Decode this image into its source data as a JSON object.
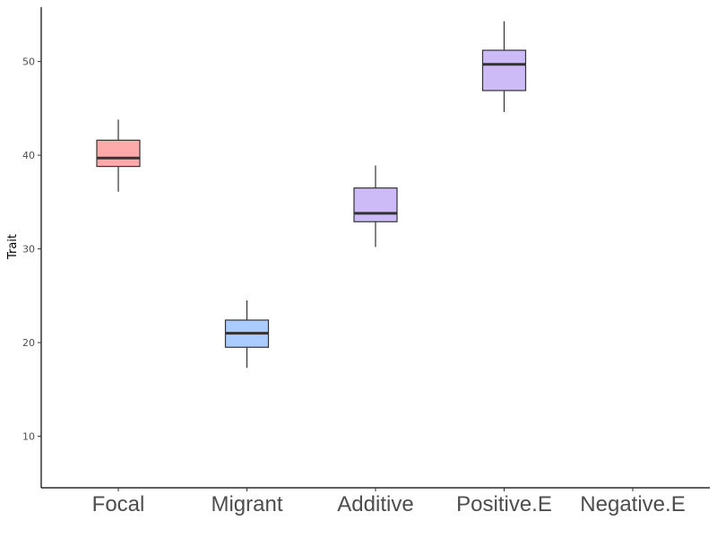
{
  "chart_data": {
    "type": "box",
    "title": "",
    "xlabel": "",
    "ylabel": "Trait",
    "ylim": [
      4.5,
      55.8
    ],
    "yticks": [
      10,
      20,
      30,
      40,
      50
    ],
    "grid": false,
    "legend": "none",
    "categories": [
      "Focal",
      "Migrant",
      "Additive",
      "Positive.E",
      "Negative.E"
    ],
    "boxes": [
      {
        "category": "Focal",
        "whisker_low": 36.1,
        "q1": 38.8,
        "median": 39.7,
        "q3": 41.6,
        "whisker_high": 43.8,
        "color": "#ffaaaa"
      },
      {
        "category": "Migrant",
        "whisker_low": 17.3,
        "q1": 19.5,
        "median": 21.0,
        "q3": 22.4,
        "whisker_high": 24.5,
        "color": "#aaccff"
      },
      {
        "category": "Additive",
        "whisker_low": 30.2,
        "q1": 32.9,
        "median": 33.8,
        "q3": 36.5,
        "whisker_high": 38.9,
        "color": "#ccbbf7"
      },
      {
        "category": "Positive.E",
        "whisker_low": 44.6,
        "q1": 46.9,
        "median": 49.7,
        "q3": 51.2,
        "whisker_high": 54.3,
        "color": "#ccbbf7"
      },
      {
        "category": "Negative.E",
        "whisker_low": null,
        "q1": null,
        "median": null,
        "q3": null,
        "whisker_high": null,
        "color": null
      }
    ]
  }
}
